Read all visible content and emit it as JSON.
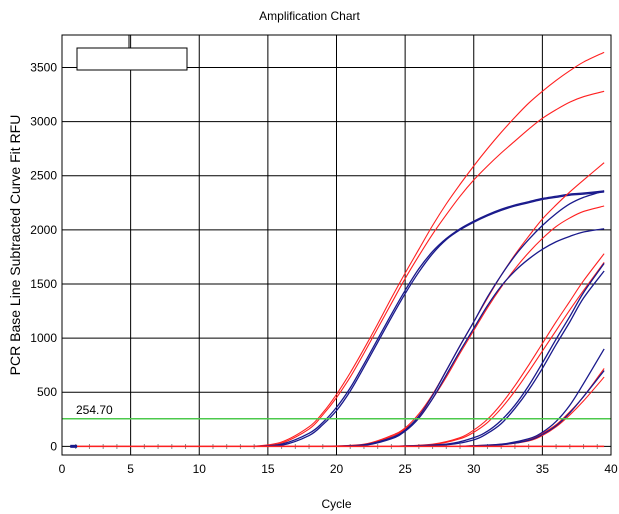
{
  "chart_data": {
    "type": "line",
    "title": "Amplification Chart",
    "xlabel": "Cycle",
    "ylabel": "PCR Base Line Subtracted Curve Fit RFU",
    "xlim": [
      0,
      40
    ],
    "ylim": [
      -80,
      3800
    ],
    "xticks": [
      0,
      5,
      10,
      15,
      20,
      25,
      30,
      35,
      40
    ],
    "yticks": [
      0,
      500,
      1000,
      1500,
      2000,
      2500,
      3000,
      3500
    ],
    "grid": true,
    "threshold": {
      "value": 254.7,
      "label": "254.70",
      "color": "#4CC94C"
    },
    "series_colors": {
      "red": "#FF2020",
      "blue": "#1A1A8C"
    },
    "series": [
      {
        "color": "red",
        "x": [
          14,
          16,
          18,
          19,
          20,
          21,
          22,
          23,
          24,
          25,
          26,
          27,
          28,
          29,
          30,
          31,
          32,
          33,
          34,
          35,
          36,
          37,
          38,
          39.5
        ],
        "y": [
          0,
          40,
          180,
          310,
          480,
          680,
          900,
          1130,
          1370,
          1600,
          1820,
          2040,
          2240,
          2420,
          2590,
          2750,
          2900,
          3040,
          3170,
          3280,
          3380,
          3470,
          3550,
          3640
        ]
      },
      {
        "color": "red",
        "x": [
          14,
          16,
          18,
          19,
          20,
          21,
          22,
          23,
          24,
          25,
          26,
          27,
          28,
          29,
          30,
          31,
          32,
          33,
          34,
          35,
          36,
          37,
          38,
          39.5
        ],
        "y": [
          0,
          30,
          160,
          290,
          450,
          640,
          860,
          1090,
          1320,
          1550,
          1760,
          1960,
          2140,
          2310,
          2460,
          2590,
          2710,
          2820,
          2930,
          3030,
          3110,
          3180,
          3230,
          3280
        ]
      },
      {
        "color": "blue",
        "x": [
          14,
          16,
          18,
          19,
          20,
          21,
          22,
          23,
          24,
          25,
          26,
          27,
          28,
          29,
          30,
          31,
          32,
          33,
          34,
          35,
          36,
          37,
          38,
          39.5
        ],
        "y": [
          0,
          20,
          120,
          220,
          360,
          540,
          760,
          990,
          1220,
          1440,
          1640,
          1800,
          1920,
          2010,
          2080,
          2140,
          2190,
          2230,
          2260,
          2290,
          2310,
          2330,
          2340,
          2360
        ]
      },
      {
        "color": "blue",
        "x": [
          14,
          16,
          18,
          19,
          20,
          21,
          22,
          23,
          24,
          25,
          26,
          27,
          28,
          29,
          30,
          31,
          32,
          33,
          34,
          35,
          36,
          37,
          38,
          39.5
        ],
        "y": [
          0,
          10,
          100,
          200,
          330,
          510,
          730,
          960,
          1190,
          1410,
          1610,
          1780,
          1910,
          2000,
          2070,
          2130,
          2180,
          2220,
          2250,
          2280,
          2300,
          2320,
          2330,
          2350
        ]
      },
      {
        "color": "red",
        "x": [
          19,
          22,
          24,
          25,
          26,
          27,
          28,
          29,
          30,
          31,
          32,
          33,
          34,
          35,
          36,
          37,
          38,
          39.5
        ],
        "y": [
          0,
          20,
          100,
          170,
          300,
          480,
          700,
          930,
          1150,
          1370,
          1580,
          1770,
          1940,
          2100,
          2230,
          2350,
          2460,
          2620
        ]
      },
      {
        "color": "red",
        "x": [
          19,
          22,
          24,
          25,
          26,
          27,
          28,
          29,
          30,
          31,
          32,
          33,
          34,
          35,
          36,
          37,
          38,
          39.5
        ],
        "y": [
          0,
          15,
          90,
          160,
          270,
          440,
          640,
          860,
          1070,
          1280,
          1470,
          1640,
          1790,
          1920,
          2030,
          2110,
          2170,
          2220
        ]
      },
      {
        "color": "blue",
        "x": [
          19,
          22,
          24,
          25,
          26,
          27,
          28,
          29,
          30,
          31,
          32,
          33,
          34,
          35,
          36,
          37,
          38,
          39.5
        ],
        "y": [
          0,
          15,
          80,
          150,
          280,
          470,
          700,
          930,
          1150,
          1380,
          1580,
          1760,
          1910,
          2040,
          2150,
          2240,
          2300,
          2360
        ]
      },
      {
        "color": "blue",
        "x": [
          19,
          22,
          24,
          25,
          26,
          27,
          28,
          29,
          30,
          31,
          32,
          33,
          34,
          35,
          36,
          37,
          38,
          39.5
        ],
        "y": [
          0,
          10,
          70,
          140,
          260,
          440,
          660,
          880,
          1090,
          1300,
          1480,
          1620,
          1730,
          1820,
          1890,
          1940,
          1980,
          2010
        ]
      },
      {
        "color": "red",
        "x": [
          24,
          27,
          29,
          30,
          31,
          32,
          33,
          34,
          35,
          36,
          37,
          38,
          39.5
        ],
        "y": [
          0,
          20,
          80,
          150,
          250,
          390,
          560,
          750,
          950,
          1150,
          1340,
          1530,
          1780
        ]
      },
      {
        "color": "red",
        "x": [
          24,
          27,
          29,
          30,
          31,
          32,
          33,
          34,
          35,
          36,
          37,
          38,
          39.5
        ],
        "y": [
          0,
          15,
          70,
          130,
          220,
          350,
          510,
          690,
          880,
          1070,
          1260,
          1440,
          1700
        ]
      },
      {
        "color": "blue",
        "x": [
          24,
          28,
          30,
          31,
          32,
          33,
          34,
          35,
          36,
          37,
          38,
          39.5
        ],
        "y": [
          0,
          20,
          80,
          140,
          240,
          380,
          560,
          770,
          990,
          1200,
          1420,
          1690
        ]
      },
      {
        "color": "blue",
        "x": [
          24,
          28,
          30,
          31,
          32,
          33,
          34,
          35,
          36,
          37,
          38,
          39.5
        ],
        "y": [
          0,
          15,
          60,
          120,
          210,
          350,
          520,
          720,
          940,
          1150,
          1370,
          1620
        ]
      },
      {
        "color": "red",
        "x": [
          29,
          32,
          34,
          35,
          36,
          37,
          38,
          39.5
        ],
        "y": [
          0,
          20,
          60,
          120,
          200,
          320,
          460,
          720
        ]
      },
      {
        "color": "red",
        "x": [
          29,
          32,
          34,
          35,
          36,
          37,
          38,
          39.5
        ],
        "y": [
          0,
          15,
          50,
          100,
          180,
          290,
          420,
          640
        ]
      },
      {
        "color": "blue",
        "x": [
          29,
          32,
          34,
          35,
          36,
          37,
          38,
          39.5
        ],
        "y": [
          0,
          20,
          70,
          130,
          230,
          380,
          580,
          900
        ]
      },
      {
        "color": "blue",
        "x": [
          29,
          32,
          34,
          35,
          36,
          37,
          38,
          39.5
        ],
        "y": [
          0,
          15,
          55,
          110,
          190,
          310,
          460,
          700
        ]
      }
    ]
  }
}
